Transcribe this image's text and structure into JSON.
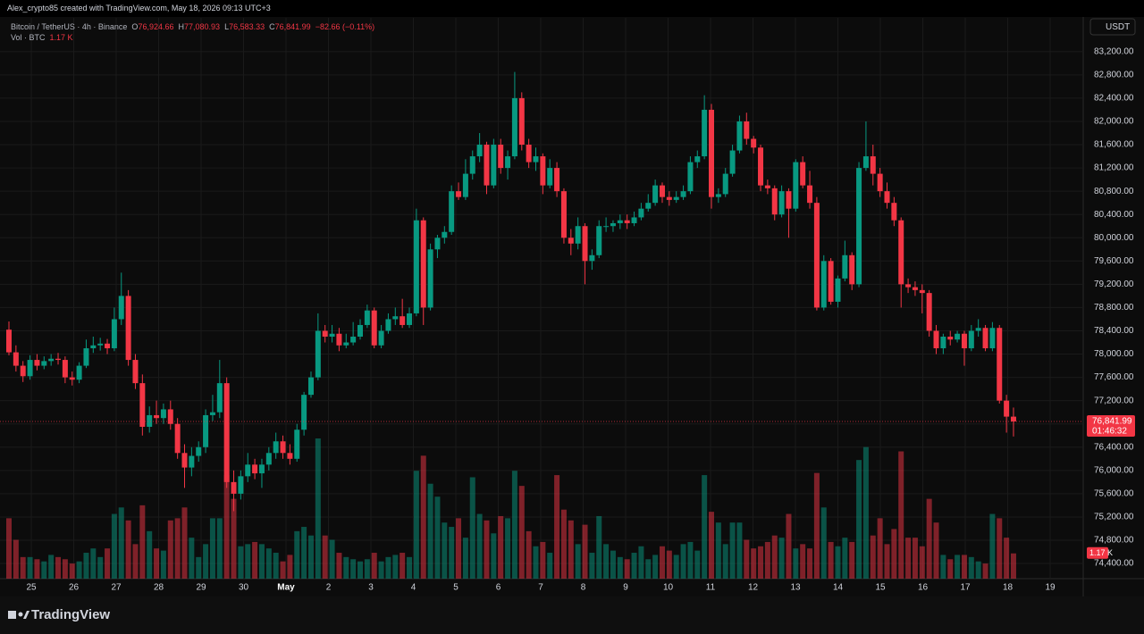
{
  "header": {
    "credit": "Alex_crypto85 created with TradingView.com, May 18, 2026 09:13 UTC+3",
    "brand": "TradingView"
  },
  "chart_data": {
    "type": "candlestick",
    "symbol": "Bitcoin / TetherUS · 4h · Binance",
    "legend": {
      "o": "O",
      "h": "H",
      "l": "L",
      "c": "C",
      "open": {
        "value": 76924.66,
        "label": "76,924.66"
      },
      "high": {
        "value": 77080.93,
        "label": "77,080.93"
      },
      "low": {
        "value": 76583.33,
        "label": "76,583.33"
      },
      "close": {
        "value": 76841.99,
        "label": "76,841.99"
      },
      "change": {
        "value": -82.66,
        "label": "−82.66 (−0.11%)"
      },
      "volume_name": "Vol · BTC",
      "volume": {
        "value": 1.17,
        "label": "1.17 K"
      }
    },
    "currency": "USDT",
    "up_color": "#089981",
    "down_color": "#f23645",
    "last_price": {
      "value": 76841.99,
      "label": "76,841.99"
    },
    "countdown": "01:46:32",
    "volume_last_label": "1.17 K",
    "ylim": [
      74140,
      83780
    ],
    "volume_ylim": [
      0,
      26
    ],
    "grid": true,
    "yticks": [
      {
        "value": 74400,
        "label": "74,400.00"
      },
      {
        "value": 74800,
        "label": "74,800.00"
      },
      {
        "value": 75200,
        "label": "75,200.00"
      },
      {
        "value": 75600,
        "label": "75,600.00"
      },
      {
        "value": 76000,
        "label": "76,000.00"
      },
      {
        "value": 76400,
        "label": "76,400.00"
      },
      {
        "value": 76800,
        "label": "76,800.00"
      },
      {
        "value": 77200,
        "label": "77,200.00"
      },
      {
        "value": 77600,
        "label": "77,600.00"
      },
      {
        "value": 78000,
        "label": "78,000.00"
      },
      {
        "value": 78400,
        "label": "78,400.00"
      },
      {
        "value": 78800,
        "label": "78,800.00"
      },
      {
        "value": 79200,
        "label": "79,200.00"
      },
      {
        "value": 79600,
        "label": "79,600.00"
      },
      {
        "value": 80000,
        "label": "80,000.00"
      },
      {
        "value": 80400,
        "label": "80,400.00"
      },
      {
        "value": 80800,
        "label": "80,800.00"
      },
      {
        "value": 81200,
        "label": "81,200.00"
      },
      {
        "value": 81600,
        "label": "81,600.00"
      },
      {
        "value": 82000,
        "label": "82,000.00"
      },
      {
        "value": 82400,
        "label": "82,400.00"
      },
      {
        "value": 82800,
        "label": "82,800.00"
      },
      {
        "value": 83200,
        "label": "83,200.00"
      }
    ],
    "xticks": [
      "25",
      "26",
      "27",
      "28",
      "29",
      "30",
      "May",
      "2",
      "3",
      "4",
      "5",
      "6",
      "7",
      "8",
      "9",
      "10",
      "11",
      "12",
      "13",
      "14",
      "15",
      "16",
      "17",
      "18",
      "19"
    ],
    "candles": [
      [
        78420,
        78560,
        77980,
        78030
      ],
      [
        78030,
        78150,
        77700,
        77800
      ],
      [
        77800,
        77880,
        77520,
        77620
      ],
      [
        77620,
        77980,
        77560,
        77900
      ],
      [
        77900,
        78000,
        77720,
        77800
      ],
      [
        77800,
        77960,
        77740,
        77880
      ],
      [
        77880,
        78000,
        77800,
        77920
      ],
      [
        77920,
        78020,
        77820,
        77900
      ],
      [
        77900,
        77960,
        77500,
        77600
      ],
      [
        77600,
        77700,
        77460,
        77560
      ],
      [
        77560,
        77860,
        77500,
        77800
      ],
      [
        77800,
        78250,
        77760,
        78100
      ],
      [
        78100,
        78300,
        78020,
        78150
      ],
      [
        78150,
        78280,
        78060,
        78180
      ],
      [
        78180,
        78260,
        78000,
        78100
      ],
      [
        78100,
        78800,
        78050,
        78600
      ],
      [
        78600,
        79400,
        78500,
        79000
      ],
      [
        79000,
        79100,
        77800,
        77900
      ],
      [
        77900,
        78000,
        77400,
        77500
      ],
      [
        77500,
        77650,
        76600,
        76750
      ],
      [
        76750,
        77100,
        76650,
        76950
      ],
      [
        76950,
        77200,
        76800,
        76900
      ],
      [
        76900,
        77150,
        76800,
        77050
      ],
      [
        77050,
        77200,
        76700,
        76800
      ],
      [
        76800,
        76900,
        76200,
        76300
      ],
      [
        76300,
        76450,
        75700,
        76050
      ],
      [
        76050,
        76400,
        75900,
        76250
      ],
      [
        76250,
        76500,
        76150,
        76400
      ],
      [
        76400,
        77050,
        76300,
        76950
      ],
      [
        76950,
        77300,
        76850,
        77000
      ],
      [
        77000,
        77900,
        76900,
        77500
      ],
      [
        77500,
        77600,
        75700,
        75800
      ],
      [
        75800,
        76000,
        75300,
        75600
      ],
      [
        75600,
        76000,
        75500,
        75900
      ],
      [
        75900,
        76300,
        75800,
        76100
      ],
      [
        76100,
        76200,
        75850,
        75950
      ],
      [
        75950,
        76200,
        75700,
        76100
      ],
      [
        76100,
        76400,
        76000,
        76300
      ],
      [
        76300,
        76650,
        76200,
        76500
      ],
      [
        76500,
        76600,
        76200,
        76300
      ],
      [
        76300,
        76450,
        76100,
        76200
      ],
      [
        76200,
        76800,
        76150,
        76700
      ],
      [
        76700,
        77350,
        76600,
        77300
      ],
      [
        77300,
        77700,
        77250,
        77600
      ],
      [
        77600,
        78700,
        77550,
        78400
      ],
      [
        78400,
        78500,
        78200,
        78300
      ],
      [
        78300,
        78500,
        78200,
        78350
      ],
      [
        78350,
        78450,
        78050,
        78150
      ],
      [
        78150,
        78350,
        78100,
        78200
      ],
      [
        78200,
        78550,
        78150,
        78300
      ],
      [
        78300,
        78600,
        78250,
        78500
      ],
      [
        78500,
        78850,
        78450,
        78750
      ],
      [
        78750,
        78800,
        78100,
        78150
      ],
      [
        78150,
        78500,
        78100,
        78400
      ],
      [
        78400,
        78700,
        78350,
        78600
      ],
      [
        78600,
        78800,
        78500,
        78650
      ],
      [
        78650,
        78950,
        78450,
        78500
      ],
      [
        78500,
        78800,
        78450,
        78700
      ],
      [
        78700,
        80500,
        78650,
        80300
      ],
      [
        80300,
        80350,
        78500,
        78800
      ],
      [
        78800,
        79900,
        78750,
        79800
      ],
      [
        79800,
        80050,
        79650,
        80000
      ],
      [
        80000,
        80200,
        79900,
        80100
      ],
      [
        80100,
        80900,
        80050,
        80800
      ],
      [
        80800,
        80950,
        80650,
        80700
      ],
      [
        80700,
        81350,
        80650,
        81100
      ],
      [
        81100,
        81500,
        81000,
        81400
      ],
      [
        81400,
        81800,
        81300,
        81600
      ],
      [
        81600,
        81650,
        80750,
        80900
      ],
      [
        80900,
        81700,
        80850,
        81600
      ],
      [
        81600,
        81700,
        81100,
        81200
      ],
      [
        81200,
        81500,
        81000,
        81400
      ],
      [
        81400,
        82850,
        81350,
        82400
      ],
      [
        82400,
        82500,
        81500,
        81600
      ],
      [
        81600,
        81700,
        81200,
        81300
      ],
      [
        81300,
        81550,
        81150,
        81400
      ],
      [
        81400,
        81450,
        80750,
        80900
      ],
      [
        80900,
        81350,
        80850,
        81200
      ],
      [
        81200,
        81300,
        80700,
        80800
      ],
      [
        80800,
        80850,
        79900,
        80000
      ],
      [
        80000,
        80150,
        79700,
        79900
      ],
      [
        79900,
        80350,
        79800,
        80200
      ],
      [
        80200,
        80250,
        79200,
        79600
      ],
      [
        79600,
        79800,
        79450,
        79700
      ],
      [
        79700,
        80300,
        79650,
        80200
      ],
      [
        80200,
        80350,
        80100,
        80200
      ],
      [
        80200,
        80300,
        80100,
        80250
      ],
      [
        80250,
        80400,
        80150,
        80300
      ],
      [
        80300,
        80400,
        80150,
        80250
      ],
      [
        80250,
        80450,
        80200,
        80350
      ],
      [
        80350,
        80600,
        80300,
        80500
      ],
      [
        80500,
        80750,
        80450,
        80600
      ],
      [
        80600,
        81000,
        80550,
        80900
      ],
      [
        80900,
        80950,
        80600,
        80700
      ],
      [
        80700,
        80800,
        80550,
        80650
      ],
      [
        80650,
        80800,
        80600,
        80700
      ],
      [
        80700,
        80900,
        80650,
        80800
      ],
      [
        80800,
        81400,
        80750,
        81300
      ],
      [
        81300,
        81500,
        81200,
        81400
      ],
      [
        81400,
        82450,
        81350,
        82200
      ],
      [
        82200,
        82300,
        80500,
        80700
      ],
      [
        80700,
        80850,
        80600,
        80750
      ],
      [
        80750,
        81200,
        80700,
        81100
      ],
      [
        81100,
        81600,
        81050,
        81500
      ],
      [
        81500,
        82100,
        81450,
        82000
      ],
      [
        82000,
        82150,
        81600,
        81700
      ],
      [
        81700,
        81750,
        81450,
        81550
      ],
      [
        81550,
        81600,
        80800,
        80900
      ],
      [
        80900,
        81000,
        80750,
        80850
      ],
      [
        80850,
        80900,
        80300,
        80400
      ],
      [
        80400,
        80900,
        80350,
        80800
      ],
      [
        80800,
        80850,
        80000,
        80500
      ],
      [
        80500,
        81350,
        80450,
        81300
      ],
      [
        81300,
        81400,
        80850,
        80900
      ],
      [
        80900,
        81150,
        80500,
        80600
      ],
      [
        80600,
        80700,
        78750,
        78800
      ],
      [
        78800,
        79700,
        78750,
        79600
      ],
      [
        79600,
        79650,
        78850,
        78900
      ],
      [
        78900,
        79350,
        78800,
        79300
      ],
      [
        79300,
        79950,
        79250,
        79700
      ],
      [
        79700,
        79750,
        79100,
        79200
      ],
      [
        79200,
        81300,
        79150,
        81200
      ],
      [
        81200,
        82000,
        81150,
        81400
      ],
      [
        81400,
        81600,
        80900,
        81100
      ],
      [
        81100,
        81200,
        80700,
        80800
      ],
      [
        80800,
        80950,
        80500,
        80600
      ],
      [
        80600,
        80700,
        80200,
        80300
      ],
      [
        80300,
        80350,
        78800,
        79200
      ],
      [
        79200,
        79300,
        79050,
        79150
      ],
      [
        79150,
        79250,
        79000,
        79100
      ],
      [
        79100,
        79200,
        78700,
        79050
      ],
      [
        79050,
        79100,
        78300,
        78400
      ],
      [
        78400,
        78500,
        78000,
        78100
      ],
      [
        78100,
        78350,
        78000,
        78300
      ],
      [
        78300,
        78400,
        78150,
        78250
      ],
      [
        78250,
        78400,
        78200,
        78350
      ],
      [
        78350,
        78400,
        77800,
        78100
      ],
      [
        78100,
        78500,
        78050,
        78400
      ],
      [
        78400,
        78600,
        78300,
        78450
      ],
      [
        78450,
        78500,
        78050,
        78100
      ],
      [
        78100,
        78550,
        78050,
        78450
      ],
      [
        78450,
        78500,
        77150,
        77200
      ],
      [
        77200,
        77300,
        76650,
        76924.66
      ],
      [
        76924.66,
        77080.93,
        76583.33,
        76841.99
      ]
    ],
    "volumes": [
      2.8,
      1.8,
      1.0,
      1.0,
      0.9,
      0.8,
      1.1,
      1.0,
      0.9,
      0.7,
      0.8,
      1.2,
      1.4,
      1.0,
      1.4,
      3.0,
      3.3,
      2.7,
      1.6,
      3.4,
      2.2,
      1.4,
      1.3,
      2.7,
      2.8,
      3.3,
      1.9,
      1.0,
      1.6,
      2.8,
      2.8,
      4.8,
      3.7,
      1.5,
      1.6,
      1.7,
      1.6,
      1.4,
      1.2,
      0.8,
      1.1,
      2.2,
      2.4,
      2.0,
      6.5,
      2.0,
      1.8,
      1.2,
      1.0,
      0.9,
      0.8,
      0.9,
      1.2,
      0.8,
      1.0,
      1.1,
      1.2,
      1.0,
      5.0,
      5.7,
      4.4,
      3.8,
      2.6,
      2.4,
      2.8,
      1.9,
      4.7,
      3.0,
      2.7,
      2.1,
      2.9,
      2.8,
      5.0,
      4.3,
      2.2,
      1.5,
      1.7,
      1.2,
      4.8,
      3.2,
      2.7,
      1.6,
      2.5,
      1.2,
      2.9,
      1.6,
      1.3,
      1.0,
      0.9,
      1.2,
      1.5,
      0.9,
      1.1,
      1.5,
      1.3,
      1.1,
      1.6,
      1.7,
      1.3,
      4.8,
      3.1,
      2.6,
      1.6,
      2.6,
      2.6,
      1.8,
      1.4,
      1.5,
      1.7,
      2.0,
      1.9,
      3.0,
      1.4,
      1.6,
      1.4,
      4.9,
      3.3,
      1.7,
      1.5,
      1.9,
      1.7,
      5.5,
      6.1,
      2.0,
      2.8,
      1.6,
      2.3,
      5.9,
      1.9,
      1.9,
      1.5,
      3.7,
      2.6,
      1.1,
      0.9,
      1.1,
      1.1,
      1.0,
      0.8,
      0.7,
      3.0,
      2.8,
      1.9,
      1.17
    ]
  }
}
